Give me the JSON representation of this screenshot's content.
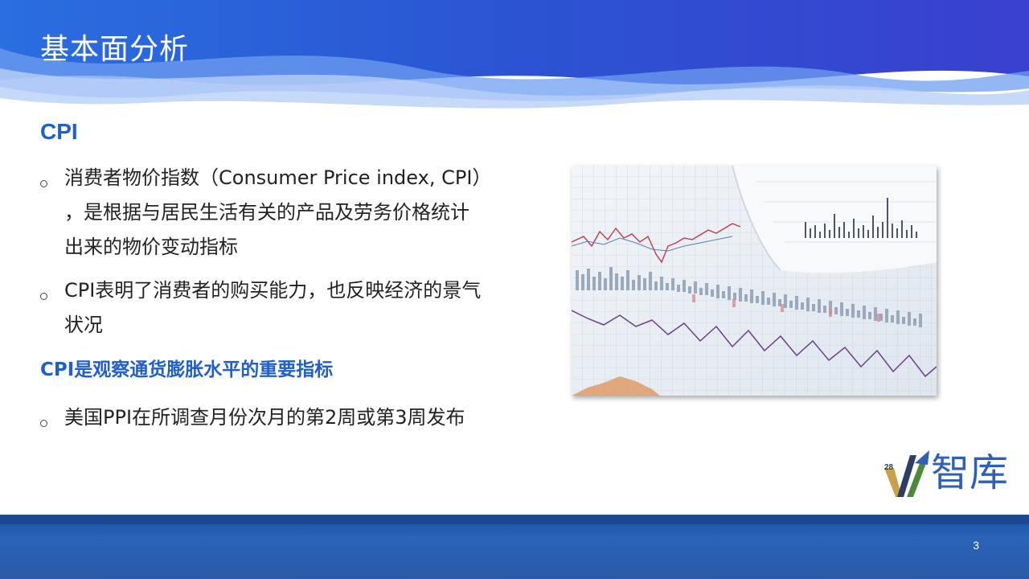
{
  "header": {
    "title": "基本面分析"
  },
  "content": {
    "section_title": "CPI",
    "bullets": [
      {
        "line1": "消费者物价指数（Consumer Price index, CPI）",
        "line2": "，是根据与居民生活有关的产品及劳务价格统计",
        "line3": "出来的物价变动指标"
      },
      {
        "line1": "CPI表明了消费者的购买能力，也反映经济的景气",
        "line2": "状况"
      }
    ],
    "highlight": "CPI是观察通货膨胀水平的重要指标",
    "bullet3": "美国PPI在所调查月份次月的第2周或第3周发布"
  },
  "image": {
    "subject": "financial-chart-photo"
  },
  "logo": {
    "number": "28",
    "text": "智库"
  },
  "footer": {
    "page_number": "3"
  },
  "colors": {
    "accent": "#1f5fc7",
    "header_blue": "#2a4fd0",
    "footer_blue": "#2b5aa8"
  }
}
